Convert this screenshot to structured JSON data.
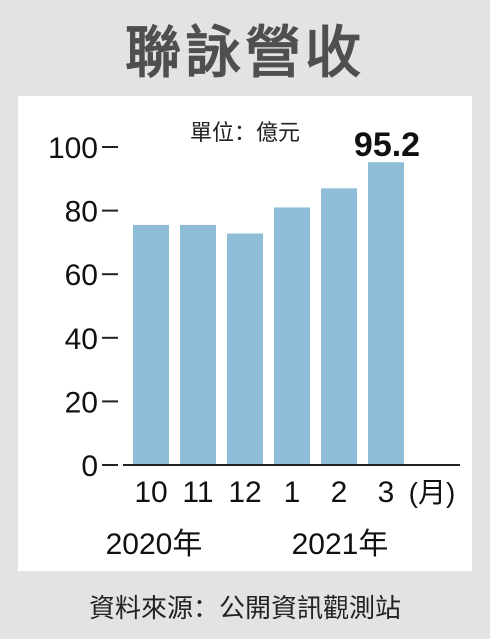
{
  "title": "聯詠營收",
  "source": "資料來源：公開資訊觀測站",
  "chart_data": {
    "type": "bar",
    "unit_label": "單位：億元",
    "categories": [
      "10",
      "11",
      "12",
      "1",
      "2",
      "3"
    ],
    "month_suffix": "(月)",
    "year_labels": [
      "2020年",
      "2021年"
    ],
    "values": [
      75.5,
      75.5,
      72.8,
      81.0,
      87.0,
      95.2
    ],
    "highlight_label": "95.2",
    "y_ticks": [
      "0",
      "20",
      "40",
      "60",
      "80",
      "100"
    ],
    "ylim": [
      0,
      100
    ],
    "bar_color": "#8fbcd6"
  }
}
